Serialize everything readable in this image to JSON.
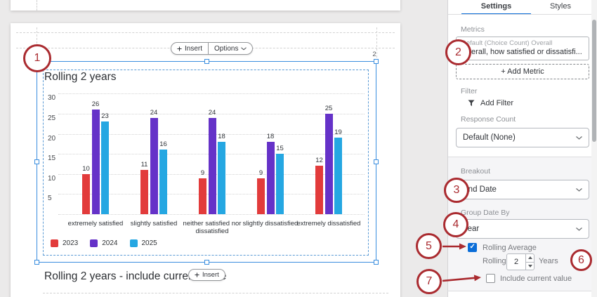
{
  "canvas": {
    "top_pill": {
      "insert_label": "Insert",
      "options_label": "Options"
    },
    "grid_position_label": "2",
    "bottom_insert_label": "Insert",
    "next_section_title": "Rolling 2 years - include current value"
  },
  "chart_data": {
    "type": "bar",
    "title": "Rolling 2 years",
    "categories": [
      "extremely satisfied",
      "slightly satisfied",
      "neither satisfied nor dissatisfied",
      "slightly dissatisfied",
      "extremely dissatisfied"
    ],
    "series": [
      {
        "name": "2023",
        "color": "#e23b3b",
        "values": [
          10,
          11,
          9,
          9,
          12
        ]
      },
      {
        "name": "2024",
        "color": "#6532c8",
        "values": [
          26,
          24,
          24,
          18,
          25
        ]
      },
      {
        "name": "2025",
        "color": "#25a7e2",
        "values": [
          23,
          16,
          18,
          15,
          19
        ]
      }
    ],
    "ylim": [
      0,
      30
    ],
    "yticks": [
      5,
      10,
      15,
      20,
      25,
      30
    ],
    "grid": "dotted-horizontal",
    "legend_position": "bottom-left",
    "value_labels": true
  },
  "panel": {
    "tabs": [
      {
        "label": "Settings",
        "active": true
      },
      {
        "label": "Styles",
        "active": false
      }
    ],
    "metrics": {
      "label": "Metrics",
      "metric_line1": "Default (Choice Count) Overall",
      "metric_line2": "Overall, how satisfied or dissatisfi...",
      "add_metric_label": "+ Add Metric"
    },
    "filter": {
      "label": "Filter",
      "add_filter_label": "Add Filter"
    },
    "response_count": {
      "label": "Response Count",
      "value": "Default (None)"
    },
    "breakout": {
      "label": "Breakout",
      "value": "End Date"
    },
    "group_date_by": {
      "label": "Group Date By",
      "value": "Year"
    },
    "rolling_average": {
      "checked": true,
      "label": "Rolling Average",
      "prefix_label": "Rolling",
      "value": "2",
      "suffix_label": "Years"
    },
    "include_current_value": {
      "checked": false,
      "label": "Include current value"
    }
  },
  "annotations": {
    "color": "#aa2b30",
    "numbers": [
      "1",
      "2",
      "3",
      "4",
      "5",
      "6",
      "7"
    ]
  }
}
